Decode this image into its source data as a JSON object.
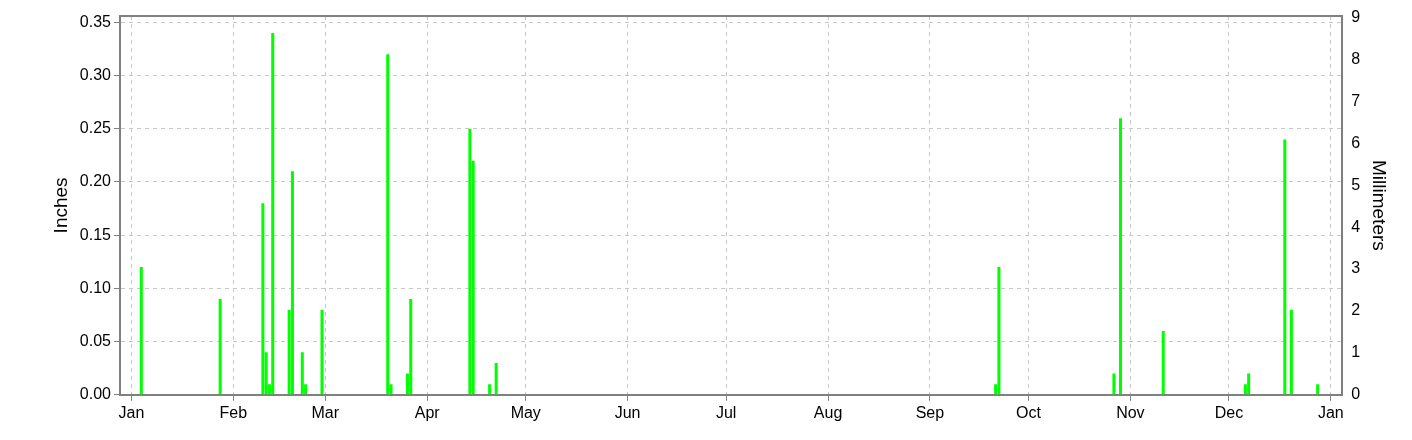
{
  "chart_data": {
    "type": "bar",
    "ylabel": "Inches",
    "y2label": "Millimeters",
    "categories": [
      null,
      null,
      null,
      "Jan",
      null,
      null,
      null,
      null,
      null,
      null,
      null,
      null,
      null,
      null,
      null,
      null,
      null,
      null,
      null,
      null,
      null,
      null,
      null,
      null,
      null,
      null,
      null,
      null,
      null,
      null,
      null,
      null,
      null,
      null,
      "Feb",
      null,
      null,
      null,
      null,
      null,
      null,
      null,
      null,
      null,
      null,
      null,
      null,
      null,
      null,
      null,
      null,
      null,
      null,
      null,
      null,
      null,
      null,
      null,
      null,
      null,
      null,
      null,
      "Mar",
      null,
      null,
      null,
      null,
      null,
      null,
      null,
      null,
      null,
      null,
      null,
      null,
      null,
      null,
      null,
      null,
      null,
      null,
      null,
      null,
      null,
      null,
      null,
      null,
      null,
      null,
      null,
      null,
      null,
      null,
      "Apr",
      null,
      null,
      null,
      null,
      null,
      null,
      null,
      null,
      null,
      null,
      null,
      null,
      null,
      null,
      null,
      null,
      null,
      null,
      null,
      null,
      null,
      null,
      null,
      null,
      null,
      null,
      null,
      null,
      null,
      "May",
      null,
      null,
      null,
      null,
      null,
      null,
      null,
      null,
      null,
      null,
      null,
      null,
      null,
      null,
      null,
      null,
      null,
      null,
      null,
      null,
      null,
      null,
      null,
      null,
      null,
      null,
      null,
      null,
      null,
      null,
      "Jun",
      null,
      null,
      null,
      null,
      null,
      null,
      null,
      null,
      null,
      null,
      null,
      null,
      null,
      null,
      null,
      null,
      null,
      null,
      null,
      null,
      null,
      null,
      null,
      null,
      null,
      null,
      null,
      null,
      null,
      "Jul",
      null,
      null,
      null,
      null,
      null,
      null,
      null,
      null,
      null,
      null,
      null,
      null,
      null,
      null,
      null,
      null,
      null,
      null,
      null,
      null,
      null,
      null,
      null,
      null,
      null,
      null,
      null,
      null,
      null,
      null,
      "Aug",
      null,
      null,
      null,
      null,
      null,
      null,
      null,
      null,
      null,
      null,
      null,
      null,
      null,
      null,
      null,
      null,
      null,
      null,
      null,
      null,
      null,
      null,
      null,
      null,
      null,
      null,
      null,
      null,
      null,
      null,
      "Sep",
      null,
      null,
      null,
      null,
      null,
      null,
      null,
      null,
      null,
      null,
      null,
      null,
      null,
      null,
      null,
      null,
      null,
      null,
      null,
      null,
      null,
      null,
      null,
      null,
      null,
      null,
      null,
      null,
      null,
      "Oct",
      null,
      null,
      null,
      null,
      null,
      null,
      null,
      null,
      null,
      null,
      null,
      null,
      null,
      null,
      null,
      null,
      null,
      null,
      null,
      null,
      null,
      null,
      null,
      null,
      null,
      null,
      null,
      null,
      null,
      null,
      "Nov",
      null,
      null,
      null,
      null,
      null,
      null,
      null,
      null,
      null,
      null,
      null,
      null,
      null,
      null,
      null,
      null,
      null,
      null,
      null,
      null,
      null,
      null,
      null,
      null,
      null,
      null,
      null,
      null,
      null,
      "Dec",
      null,
      null,
      null,
      null,
      null,
      null,
      null,
      null,
      null,
      null,
      null,
      null,
      null,
      null,
      null,
      null,
      null,
      null,
      null,
      null,
      null,
      null,
      null,
      null,
      null,
      null,
      null,
      null,
      null,
      null,
      "Jan",
      null,
      null,
      null
    ],
    "values": [
      null,
      null,
      null,
      null,
      null,
      null,
      0.12,
      null,
      null,
      null,
      null,
      null,
      null,
      null,
      null,
      null,
      null,
      null,
      null,
      null,
      null,
      null,
      null,
      null,
      null,
      null,
      null,
      null,
      null,
      null,
      0.09,
      null,
      null,
      null,
      null,
      null,
      null,
      null,
      null,
      null,
      null,
      null,
      null,
      0.18,
      0.04,
      0.01,
      0.34,
      null,
      null,
      null,
      null,
      0.08,
      0.21,
      null,
      null,
      0.04,
      0.01,
      null,
      null,
      null,
      null,
      0.08,
      null,
      null,
      null,
      null,
      null,
      null,
      null,
      null,
      null,
      null,
      null,
      null,
      null,
      null,
      null,
      null,
      null,
      null,
      null,
      0.32,
      0.01,
      null,
      null,
      null,
      null,
      0.02,
      0.09,
      null,
      null,
      null,
      null,
      null,
      null,
      null,
      null,
      null,
      null,
      null,
      null,
      null,
      null,
      null,
      null,
      null,
      0.25,
      0.22,
      null,
      null,
      null,
      null,
      0.01,
      null,
      0.03,
      null,
      null,
      null,
      null,
      null,
      null,
      null,
      null,
      null,
      null,
      null,
      null,
      null,
      null,
      null,
      null,
      null,
      null,
      null,
      null,
      null,
      null,
      null,
      null,
      null,
      null,
      null,
      null,
      null,
      null,
      null,
      null,
      null,
      null,
      null,
      null,
      null,
      null,
      null,
      null,
      null,
      null,
      null,
      null,
      null,
      null,
      null,
      null,
      null,
      null,
      null,
      null,
      null,
      null,
      null,
      null,
      null,
      null,
      null,
      null,
      null,
      null,
      null,
      null,
      null,
      null,
      null,
      null,
      null,
      null,
      null,
      null,
      null,
      null,
      null,
      null,
      null,
      null,
      null,
      null,
      null,
      null,
      null,
      null,
      null,
      null,
      null,
      null,
      null,
      null,
      null,
      null,
      null,
      null,
      null,
      null,
      null,
      null,
      null,
      null,
      null,
      null,
      null,
      null,
      null,
      null,
      null,
      null,
      null,
      null,
      null,
      null,
      null,
      null,
      null,
      null,
      null,
      null,
      null,
      null,
      null,
      null,
      null,
      null,
      null,
      null,
      null,
      null,
      null,
      null,
      null,
      null,
      null,
      null,
      null,
      null,
      null,
      null,
      null,
      null,
      null,
      null,
      null,
      null,
      null,
      null,
      null,
      null,
      null,
      null,
      null,
      0.01,
      0.12,
      null,
      null,
      null,
      null,
      null,
      null,
      null,
      null,
      null,
      null,
      null,
      null,
      null,
      null,
      null,
      null,
      null,
      null,
      null,
      null,
      null,
      null,
      null,
      null,
      null,
      null,
      null,
      null,
      null,
      null,
      null,
      null,
      null,
      null,
      0.02,
      null,
      0.26,
      null,
      null,
      null,
      null,
      null,
      null,
      null,
      null,
      null,
      null,
      null,
      null,
      0.06,
      null,
      null,
      null,
      null,
      null,
      null,
      null,
      null,
      null,
      null,
      null,
      null,
      null,
      null,
      null,
      null,
      null,
      null,
      null,
      null,
      null,
      null,
      null,
      null,
      0.01,
      0.02,
      null,
      null,
      null,
      null,
      null,
      null,
      null,
      null,
      null,
      null,
      0.24,
      null,
      0.08,
      null,
      null,
      null,
      null,
      null,
      null,
      null,
      0.01,
      null,
      null,
      null,
      null,
      null,
      null,
      null
    ],
    "color": "#00ff00",
    "ylim": [
      0,
      0.356
    ],
    "yticks": [
      {
        "value": 0,
        "label": "0.00"
      },
      {
        "value": 0.05,
        "label": "0.05"
      },
      {
        "value": 0.1,
        "label": "0.10"
      },
      {
        "value": 0.15,
        "label": "0.15"
      },
      {
        "value": 0.2,
        "label": "0.20"
      },
      {
        "value": 0.25,
        "label": "0.25"
      },
      {
        "value": 0.3,
        "label": "0.30"
      },
      {
        "value": 0.35,
        "label": "0.35"
      }
    ],
    "y2lim": [
      0,
      9.04
    ],
    "y2ticks": [
      0,
      1,
      2,
      3,
      4,
      5,
      6,
      7,
      8,
      9
    ],
    "grid": true,
    "legend": false
  }
}
